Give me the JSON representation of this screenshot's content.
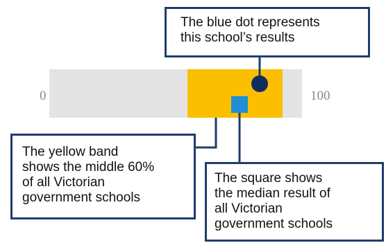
{
  "scale": {
    "min_label": "0",
    "max_label": "100",
    "min": 0,
    "max": 100
  },
  "band": {
    "description_lines": [
      "The yellow band",
      "shows the middle 60%",
      "of all Victorian",
      "government schools"
    ],
    "color": "#fbbf00"
  },
  "school_dot": {
    "description_lines": [
      "The blue dot represents",
      "this school’s results"
    ],
    "color": "#0f2d5e"
  },
  "median_square": {
    "description_lines": [
      "The square shows",
      "the median result of",
      "all Victorian",
      "government schools"
    ],
    "color": "#1f8fd6"
  },
  "colors": {
    "track": "#e4e4e4",
    "callout_border": "#1e3d6b",
    "connector": "#1e3d6b",
    "scale_text": "#8a8a8a"
  }
}
